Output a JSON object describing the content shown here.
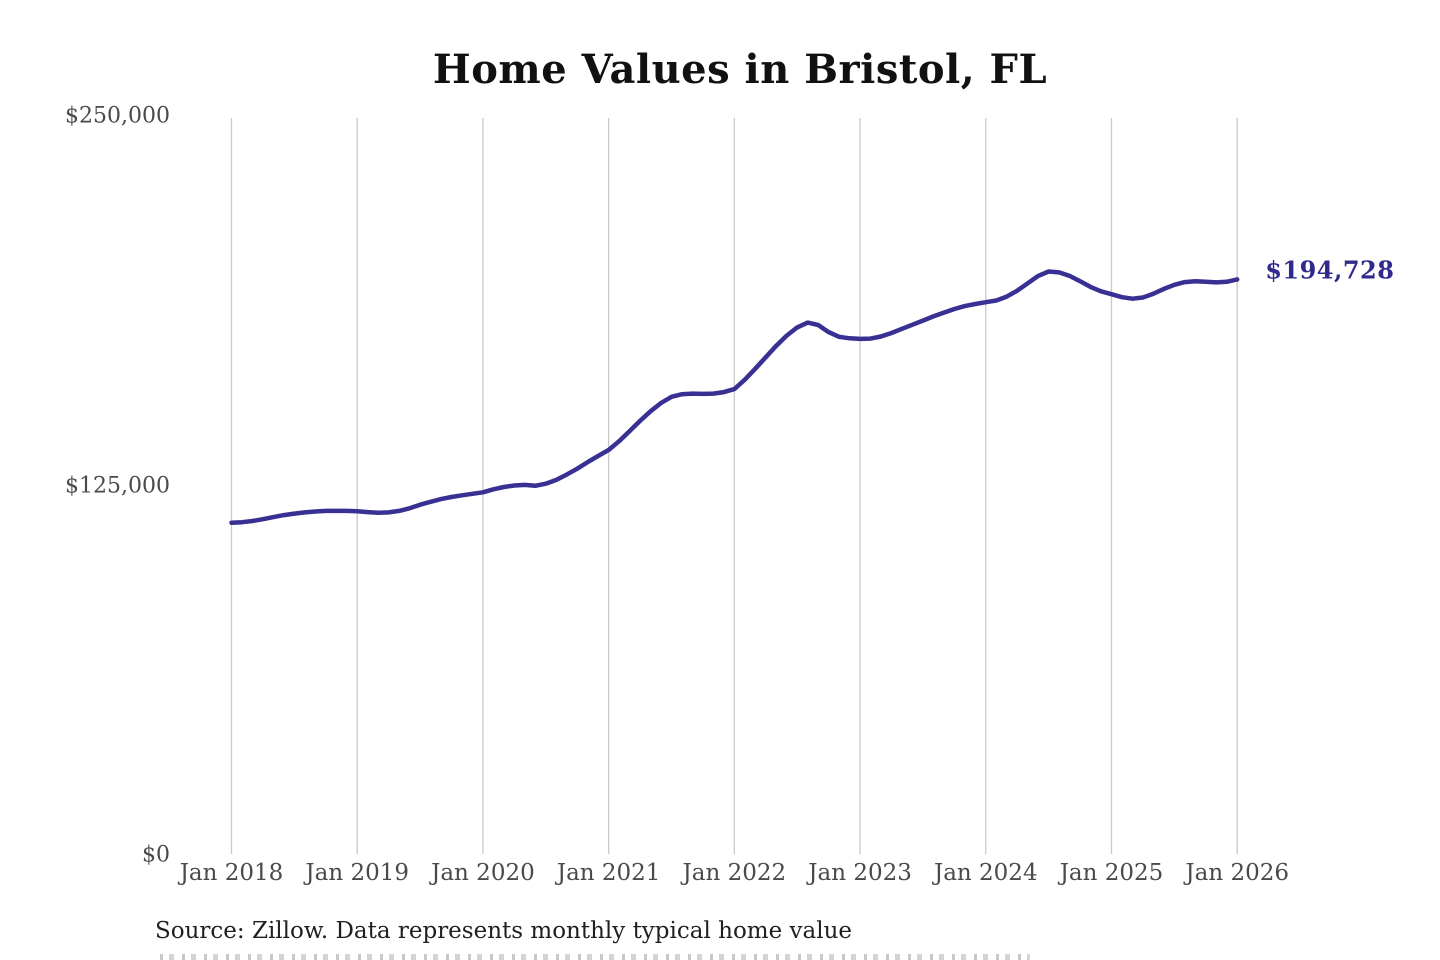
{
  "title": "Home Values in Bristol, FL",
  "source_note": "Source: Zillow. Data represents monthly typical home value",
  "colors": {
    "background": "#ffffff",
    "line": "#383193",
    "end_label_text": "#2f2a8c",
    "gridline": "#c9c9c9",
    "axis_tick_text": "#4a4a4a",
    "title_text": "#111111",
    "source_text": "#1f1f1f"
  },
  "chart_data": {
    "type": "line",
    "title": "Home Values in Bristol, FL",
    "xlabel": "",
    "ylabel": "",
    "ylim": [
      0,
      250000
    ],
    "grid": "vertical-only",
    "legend": "none",
    "frequency": "monthly",
    "x_range": [
      "Jan 2018",
      "Jan 2026"
    ],
    "x_tick_labels": [
      "Jan 2018",
      "Jan 2019",
      "Jan 2020",
      "Jan 2021",
      "Jan 2022",
      "Jan 2023",
      "Jan 2024",
      "Jan 2025",
      "Jan 2026"
    ],
    "y_ticks": [
      {
        "label": "$0",
        "value": 0
      },
      {
        "label": "$125,000",
        "value": 125000
      },
      {
        "label": "$250,000",
        "value": 250000
      }
    ],
    "end_label": "$194,728",
    "end_value": 194728,
    "series": [
      {
        "name": "Monthly typical home value",
        "start_month": "Jan 2018",
        "values": [
          112400,
          112600,
          113000,
          113600,
          114300,
          115000,
          115500,
          115900,
          116200,
          116400,
          116400,
          116400,
          116300,
          116000,
          115800,
          115900,
          116400,
          117300,
          118500,
          119500,
          120400,
          121100,
          121700,
          122200,
          122700,
          123700,
          124500,
          125000,
          125200,
          124900,
          125600,
          126900,
          128700,
          130700,
          132900,
          135000,
          137000,
          140000,
          143400,
          146900,
          150100,
          152900,
          155000,
          155900,
          156100,
          156000,
          156100,
          156600,
          157600,
          160800,
          164500,
          168400,
          172300,
          175700,
          178500,
          180100,
          179300,
          176900,
          175300,
          174800,
          174600,
          174700,
          175400,
          176600,
          178000,
          179400,
          180800,
          182200,
          183500,
          184700,
          185700,
          186400,
          187000,
          187600,
          188900,
          190900,
          193400,
          195900,
          197400,
          197100,
          195900,
          194100,
          192200,
          190700,
          189700,
          188700,
          188200,
          188600,
          189900,
          191500,
          192900,
          193800,
          194100,
          193900,
          193700,
          193900,
          194728
        ]
      }
    ]
  }
}
